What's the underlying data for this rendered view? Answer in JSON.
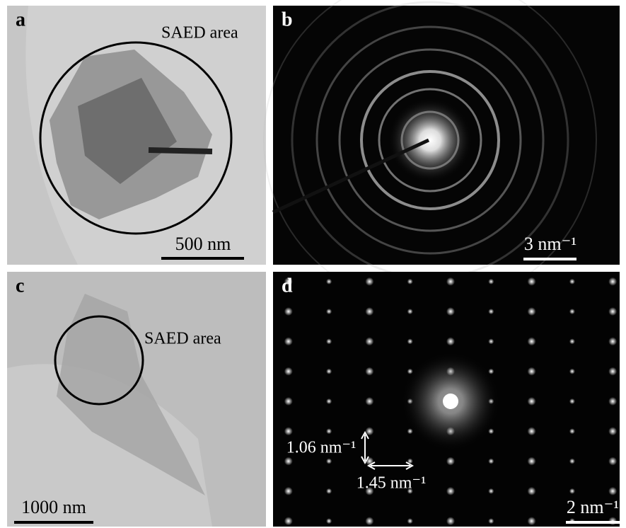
{
  "panels": [
    {
      "label": "a",
      "annotation": "SAED area",
      "scale_bar": "500 nm"
    },
    {
      "label": "b",
      "scale_bar": "3 nm⁻¹"
    },
    {
      "label": "c",
      "annotation": "SAED area",
      "scale_bar": "1000 nm"
    },
    {
      "label": "d",
      "scale_bar": "2 nm⁻¹",
      "spacings": [
        "1.06 nm⁻¹",
        "1.45 nm⁻¹"
      ]
    }
  ]
}
